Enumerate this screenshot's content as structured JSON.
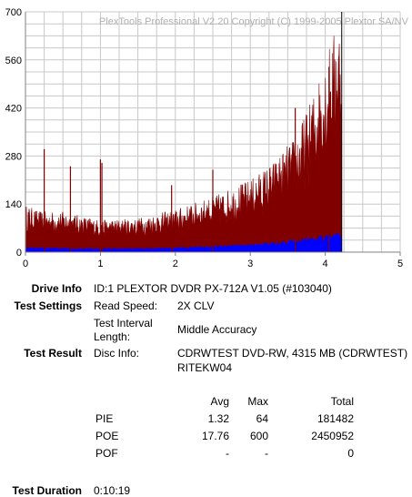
{
  "chart_data": {
    "type": "area",
    "title": "PlexTools Professional V2.20 Copyright (C) 1999-2005 Plextor SA/NV",
    "xlim": [
      0,
      5
    ],
    "ylim": [
      0,
      700
    ],
    "x_ticks": [
      "0",
      "1",
      "2",
      "3",
      "4",
      "5"
    ],
    "y_ticks": [
      "0",
      "140",
      "280",
      "420",
      "560",
      "700"
    ],
    "grid": true,
    "disc_end_x": 4.22,
    "series": [
      {
        "name": "PIE",
        "color": "#800000",
        "x": [
          0,
          0.2,
          0.5,
          1.0,
          1.5,
          2.0,
          2.5,
          3.0,
          3.3,
          3.6,
          3.8,
          4.0,
          4.22
        ],
        "values": [
          110,
          95,
          95,
          75,
          80,
          100,
          130,
          170,
          210,
          270,
          350,
          460,
          560
        ]
      },
      {
        "name": "POE",
        "color": "#0000ff",
        "x": [
          0,
          0.5,
          1.0,
          1.5,
          2.0,
          2.5,
          3.0,
          3.5,
          4.0,
          4.22
        ],
        "values": [
          12,
          10,
          9,
          10,
          11,
          15,
          20,
          28,
          40,
          55
        ]
      }
    ],
    "spikes": [
      {
        "x": 0.25,
        "value": 300
      },
      {
        "x": 0.6,
        "value": 250
      },
      {
        "x": 1.0,
        "value": 270
      },
      {
        "x": 1.02,
        "value": 260
      },
      {
        "x": 1.95,
        "value": 195
      },
      {
        "x": 2.5,
        "value": 240
      },
      {
        "x": 3.6,
        "value": 420
      },
      {
        "x": 4.05,
        "value": 540
      }
    ]
  },
  "drive_info": {
    "label": "Drive Info",
    "value": "ID:1 PLEXTOR DVDR PX-712A V1.05 (#103040)"
  },
  "test_settings": {
    "label": "Test Settings",
    "read_speed_label": "Read Speed:",
    "read_speed_value": "2X CLV",
    "interval_label_1": "Test Interval",
    "interval_label_2": "Length:",
    "interval_value": "Middle Accuracy"
  },
  "test_result": {
    "label": "Test Result",
    "disc_info_label": "Disc Info:",
    "disc_info_line1": "CDRWTEST DVD-RW, 4315 MB (CDRWTEST)",
    "disc_info_line2": "RITEKW04"
  },
  "results_table": {
    "headers": [
      "",
      "Avg",
      "Max",
      "Total"
    ],
    "rows": [
      {
        "name": "PIE",
        "avg": "1.32",
        "max": "64",
        "total": "181482"
      },
      {
        "name": "POE",
        "avg": "17.76",
        "max": "600",
        "total": "2450952"
      },
      {
        "name": "POF",
        "avg": "-",
        "max": "-",
        "total": "0"
      }
    ]
  },
  "test_duration": {
    "label": "Test Duration",
    "value": "0:10:19"
  }
}
